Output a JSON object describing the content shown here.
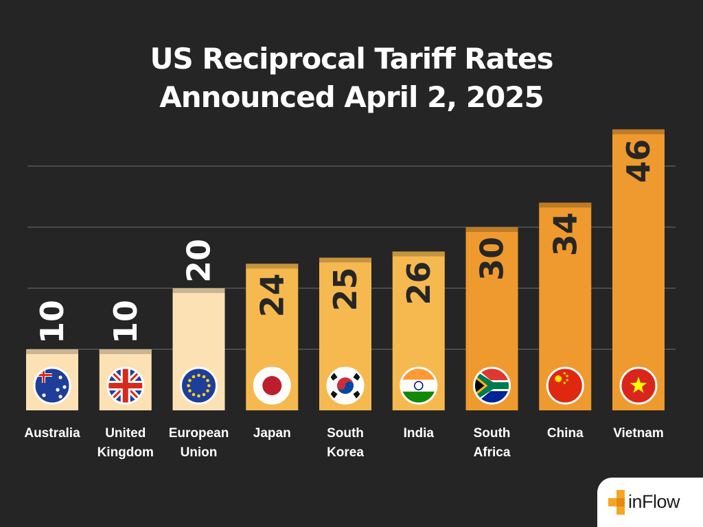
{
  "title_lines": [
    "US Reciprocal Tariff Rates",
    "Announced April 2, 2025"
  ],
  "logo": {
    "text": "inFlow",
    "accent": "#F5A623"
  },
  "colors": {
    "background": "#252525",
    "gridline": "#4a4a4a",
    "tier_light": "#FCE1B5",
    "tier_mid": "#F6B950",
    "tier_dark": "#EE9A2E"
  },
  "chart_data": {
    "type": "bar",
    "title": "US Reciprocal Tariff Rates Announced April 2, 2025",
    "categories": [
      "Australia",
      "United Kingdom",
      "European Union",
      "Japan",
      "South Korea",
      "India",
      "South Africa",
      "China",
      "Vietnam"
    ],
    "category_label_lines": [
      [
        "Australia"
      ],
      [
        "United",
        "Kingdom"
      ],
      [
        "European",
        "Union"
      ],
      [
        "Japan"
      ],
      [
        "South",
        "Korea"
      ],
      [
        "India"
      ],
      [
        "South",
        "Africa"
      ],
      [
        "China"
      ],
      [
        "Vietnam"
      ]
    ],
    "values": [
      10,
      10,
      20,
      24,
      25,
      26,
      30,
      34,
      46
    ],
    "data_labels": [
      "10",
      "10",
      "20",
      "24",
      "25",
      "26",
      "30",
      "34",
      "46"
    ],
    "flags": [
      "australia-flag",
      "uk-flag",
      "eu-flag",
      "japan-flag",
      "south-korea-flag",
      "india-flag",
      "south-africa-flag",
      "china-flag",
      "vietnam-flag"
    ],
    "ylim": [
      0,
      50
    ],
    "grid": true,
    "xlabel": "",
    "ylabel": ""
  }
}
